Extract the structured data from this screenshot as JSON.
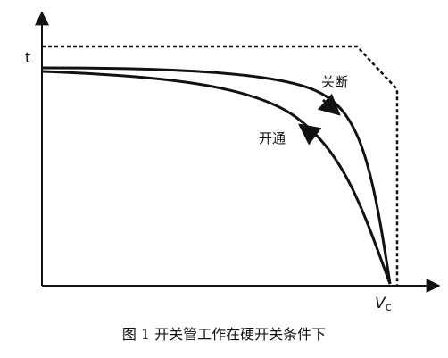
{
  "axes": {
    "y_label": "t",
    "x_label": "V",
    "x_label_sub": "c"
  },
  "curves": {
    "turn_off": "关断",
    "turn_on": "开通"
  },
  "caption": "图 1 开关管工作在硬开关条件下"
}
